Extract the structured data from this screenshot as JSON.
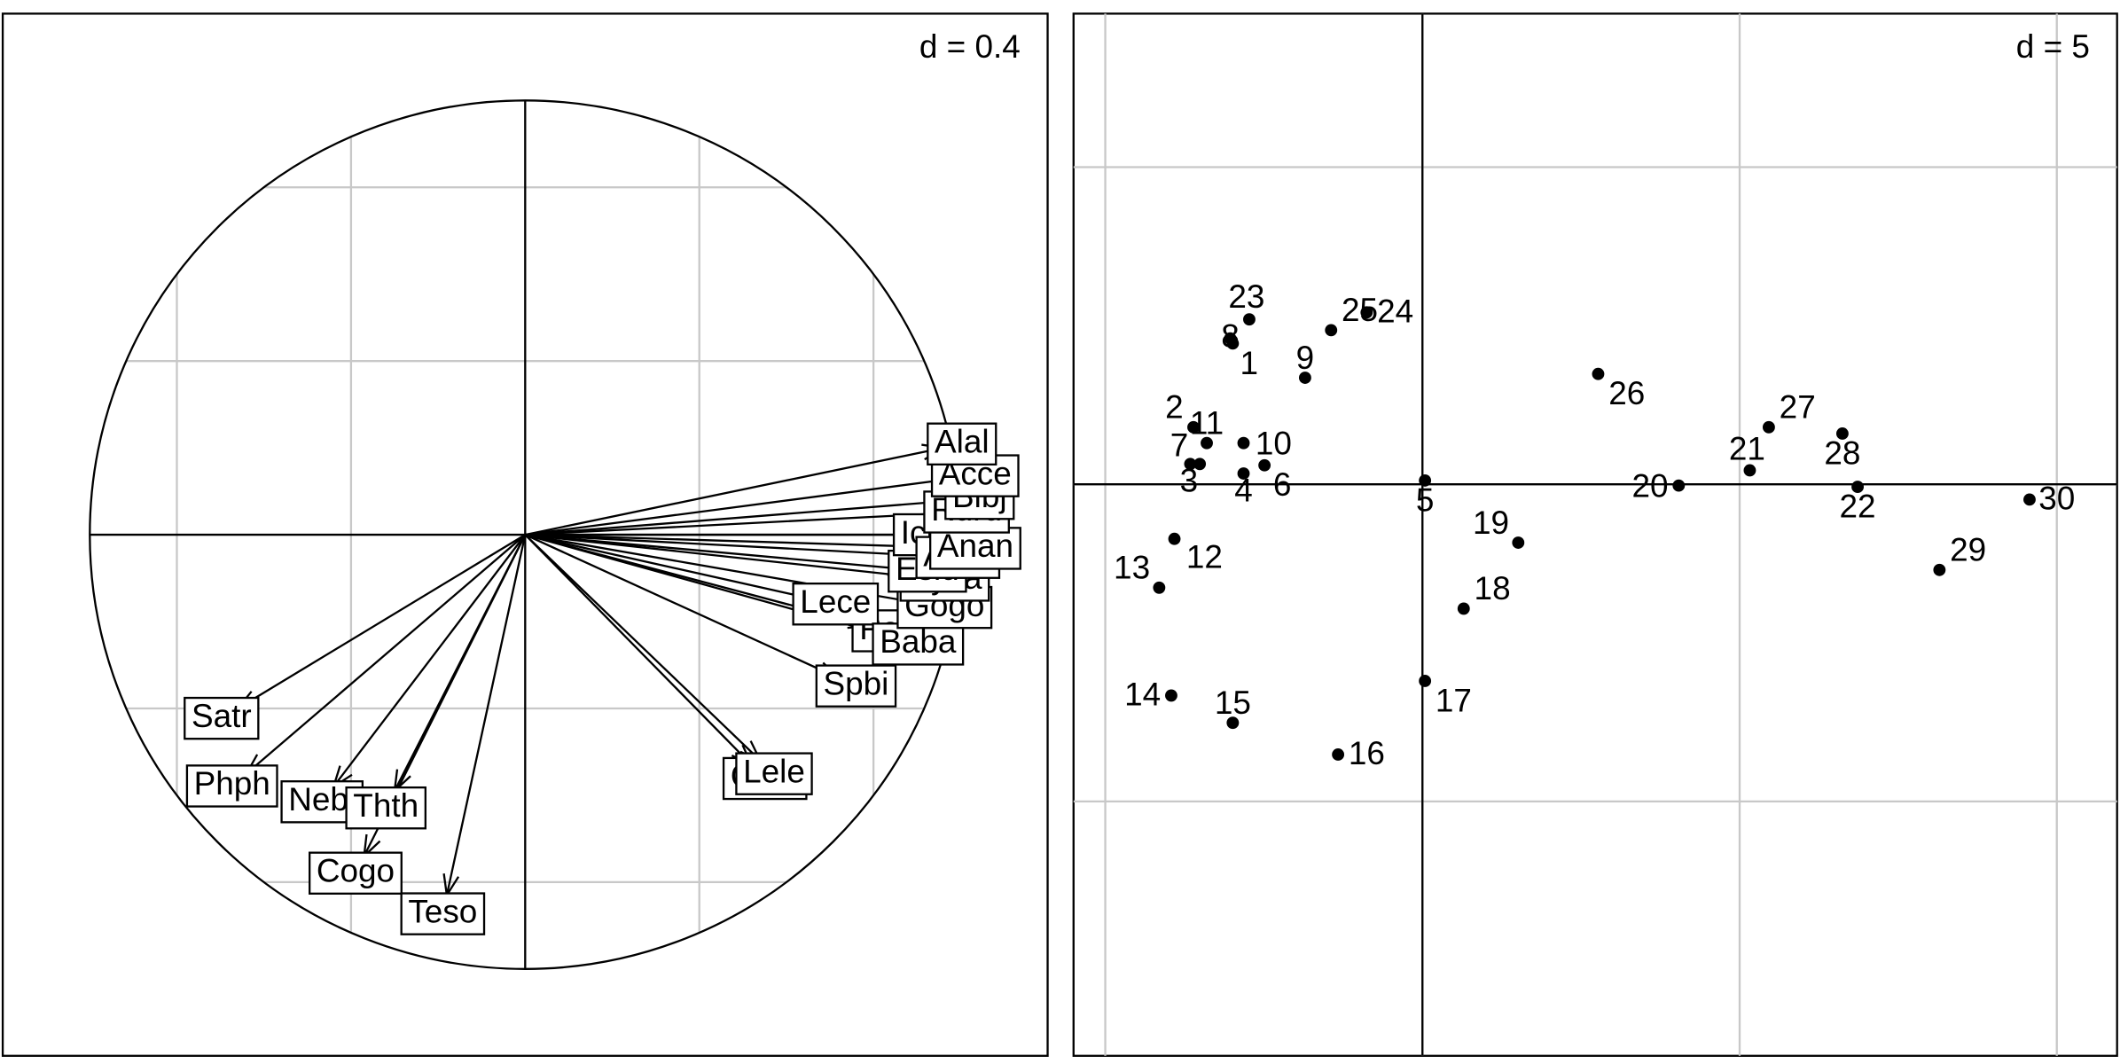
{
  "chart_data": [
    {
      "type": "arrows",
      "grid_label": "d = 0.4",
      "xlim": [
        -1.2,
        1.2
      ],
      "ylim": [
        -1.2,
        1.2
      ],
      "xticks": [
        -0.8,
        -0.4,
        0.4,
        0.8
      ],
      "yticks": [
        -0.8,
        -0.4,
        0.4,
        0.8
      ],
      "grid": true,
      "circle": true,
      "labels": [
        "Satr",
        "Phph",
        "Nebl",
        "Thth",
        "Cogo",
        "Teso",
        "Chto",
        "Lele",
        "Spbi",
        "Pefl",
        "Lece",
        "Baba",
        "Gogo",
        "Cyca",
        "Eslu",
        "Icme",
        "Abbr",
        "Anan",
        "Ruru",
        "Blbj",
        "Acce",
        "Alal"
      ],
      "x": [
        -0.66,
        -0.64,
        -0.44,
        -0.3,
        -0.37,
        -0.18,
        0.52,
        0.54,
        0.72,
        0.79,
        0.67,
        0.86,
        0.92,
        0.92,
        0.88,
        0.9,
        0.95,
        0.99,
        0.97,
        1.0,
        0.99,
        0.96
      ],
      "y": [
        -0.4,
        -0.55,
        -0.58,
        -0.59,
        -0.74,
        -0.83,
        -0.53,
        -0.52,
        -0.33,
        -0.21,
        -0.15,
        -0.24,
        -0.16,
        -0.1,
        -0.08,
        0.0,
        -0.05,
        -0.03,
        0.05,
        0.08,
        0.13,
        0.2
      ]
    },
    {
      "type": "scatter",
      "grid_label": "d = 5",
      "xlim": [
        -5.5,
        10.95
      ],
      "ylim": [
        -9.01,
        7.42
      ],
      "xticks": [
        -5,
        0,
        5,
        10
      ],
      "yticks": [
        -5,
        0,
        5
      ],
      "grid": true,
      "labels": [
        "1",
        "2",
        "3",
        "4",
        "5",
        "6",
        "7",
        "8",
        "9",
        "10",
        "11",
        "12",
        "13",
        "14",
        "15",
        "16",
        "17",
        "18",
        "19",
        "20",
        "21",
        "22",
        "23",
        "24",
        "25",
        "26",
        "27",
        "28",
        "29",
        "30"
      ],
      "x": [
        -2.99,
        -3.61,
        -3.66,
        -2.82,
        0.04,
        -2.49,
        -3.51,
        -3.03,
        -1.85,
        -2.82,
        -3.4,
        -3.91,
        -4.15,
        -3.96,
        -2.99,
        -1.33,
        0.04,
        0.65,
        1.51,
        4.04,
        5.16,
        6.86,
        -2.73,
        -0.88,
        -1.44,
        2.77,
        5.46,
        6.62,
        8.15,
        9.57
      ],
      "y": [
        2.22,
        0.9,
        0.32,
        0.17,
        0.06,
        0.3,
        0.32,
        2.3,
        1.68,
        0.65,
        0.65,
        -0.86,
        -1.63,
        -3.33,
        -3.76,
        -4.26,
        -3.1,
        -1.96,
        -0.92,
        -0.02,
        0.22,
        -0.04,
        2.6,
        2.71,
        2.43,
        1.74,
        0.9,
        0.8,
        -1.35,
        -0.24
      ]
    }
  ]
}
